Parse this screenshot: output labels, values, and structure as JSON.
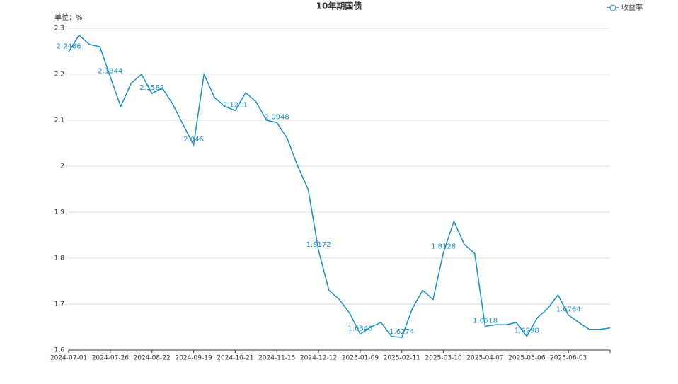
{
  "chart_data": {
    "type": "line",
    "title": "10年期国债",
    "unit_label": "单位：%",
    "categories": [
      "2024-07-01",
      null,
      null,
      null,
      "2024-07-26",
      null,
      null,
      null,
      "2024-08-22",
      null,
      null,
      null,
      "2024-09-19",
      null,
      null,
      null,
      "2024-10-21",
      null,
      null,
      null,
      "2024-11-15",
      null,
      null,
      null,
      "2024-12-12",
      null,
      null,
      null,
      "2025-01-09",
      null,
      null,
      null,
      "2025-02-11",
      null,
      null,
      null,
      "2025-03-10",
      null,
      null,
      null,
      "2025-04-07",
      null,
      null,
      null,
      "2025-05-06",
      null,
      null,
      null,
      "2025-06-03",
      null,
      null,
      null,
      null
    ],
    "series": [
      {
        "name": "收益率",
        "color": "#1a8fc0",
        "values": [
          2.2486,
          2.285,
          2.265,
          2.26,
          2.1944,
          2.13,
          2.18,
          2.2,
          2.1582,
          2.17,
          2.135,
          2.09,
          2.046,
          2.2,
          2.15,
          2.13,
          2.1211,
          2.16,
          2.14,
          2.1,
          2.0948,
          2.06,
          2.0,
          1.95,
          1.8172,
          1.73,
          1.71,
          1.68,
          1.6348,
          1.65,
          1.66,
          1.63,
          1.6274,
          1.69,
          1.73,
          1.71,
          1.8128,
          1.88,
          1.83,
          1.81,
          1.6518,
          1.655,
          1.655,
          1.66,
          1.6298,
          1.67,
          1.69,
          1.72,
          1.6764,
          1.66,
          1.645,
          1.645,
          1.648
        ]
      }
    ],
    "ylim": [
      1.6,
      2.3
    ],
    "yticks": [
      1.6,
      1.7,
      1.8,
      1.9,
      2,
      2.1,
      2.2,
      2.3
    ],
    "grid": true,
    "legend": "top-right"
  }
}
